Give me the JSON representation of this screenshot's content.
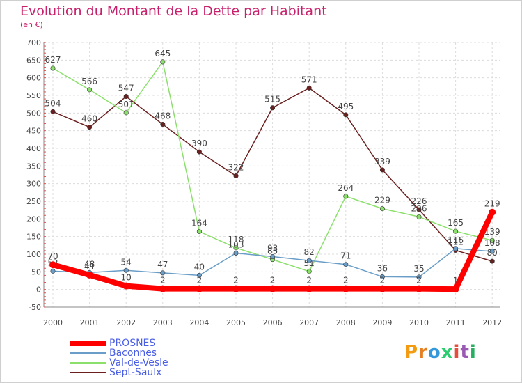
{
  "header": {
    "title": "Evolution du Montant de la Dette par Habitant",
    "subtitle": "(en €)"
  },
  "brand": {
    "logo_text": "Proxiti",
    "letter_colors": [
      "#f39c12",
      "#e67e22",
      "#3498db",
      "#2ecc71",
      "#e74c3c",
      "#9b59b6",
      "#27ae60"
    ]
  },
  "chart_data": {
    "type": "line",
    "x": [
      "2000",
      "2001",
      "2002",
      "2003",
      "2004",
      "2005",
      "2006",
      "2007",
      "2008",
      "2009",
      "2010",
      "2011",
      "2012"
    ],
    "ylim": [
      -50,
      700
    ],
    "yticks": [
      -50,
      0,
      50,
      100,
      150,
      200,
      250,
      300,
      350,
      400,
      450,
      500,
      550,
      600,
      650,
      700
    ],
    "grid": true,
    "legend_position": "bottom-left",
    "series": [
      {
        "name": "PROSNES",
        "color": "#ff0000",
        "values": [
          70,
          41,
          10,
          2,
          2,
          2,
          2,
          2,
          2,
          2,
          2,
          1,
          219
        ]
      },
      {
        "name": "Baconnes",
        "color": "#6a9ec8",
        "values": [
          52,
          48,
          54,
          47,
          40,
          103,
          93,
          82,
          71,
          36,
          35,
          116,
          108
        ]
      },
      {
        "name": "Val-de-Vesle",
        "color": "#8be06c",
        "values": [
          627,
          566,
          501,
          645,
          164,
          118,
          85,
          51,
          264,
          229,
          206,
          165,
          139
        ]
      },
      {
        "name": "Sept-Saulx",
        "color": "#6b1f1f",
        "values": [
          504,
          460,
          547,
          468,
          390,
          322,
          515,
          571,
          495,
          339,
          226,
          111,
          80
        ]
      }
    ]
  }
}
